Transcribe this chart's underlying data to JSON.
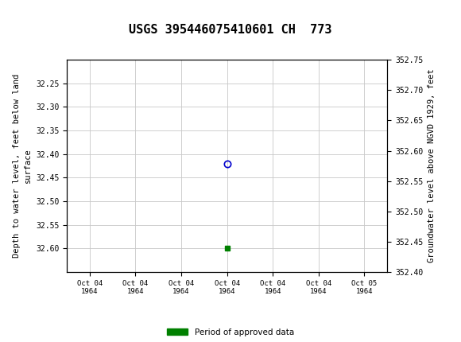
{
  "title": "USGS 395446075410601 CH  773",
  "ylabel_left": "Depth to water level, feet below land\nsurface",
  "ylabel_right": "Groundwater level above NGVD 1929, feet",
  "ylim_left": [
    32.2,
    32.65
  ],
  "ylim_right": [
    352.75,
    352.4
  ],
  "yticks_left": [
    32.25,
    32.3,
    32.35,
    32.4,
    32.45,
    32.5,
    32.55,
    32.6
  ],
  "yticks_right": [
    352.75,
    352.7,
    352.65,
    352.6,
    352.55,
    352.5,
    352.45,
    352.4
  ],
  "data_point_x": 3.0,
  "data_point_y": 32.42,
  "green_point_x": 3.0,
  "green_point_y": 32.6,
  "xlim": [
    -0.5,
    6.5
  ],
  "xtick_labels": [
    "Oct 04\n1964",
    "Oct 04\n1964",
    "Oct 04\n1964",
    "Oct 04\n1964",
    "Oct 04\n1964",
    "Oct 04\n1964",
    "Oct 05\n1964"
  ],
  "xtick_positions": [
    0,
    1,
    2,
    3,
    4,
    5,
    6
  ],
  "header_color": "#1a6b3c",
  "bg_color": "#ffffff",
  "grid_color": "#c8c8c8",
  "title_fontsize": 11,
  "axis_fontsize": 7.5,
  "tick_fontsize": 7,
  "legend_label": "Period of approved data",
  "legend_color": "#008000"
}
